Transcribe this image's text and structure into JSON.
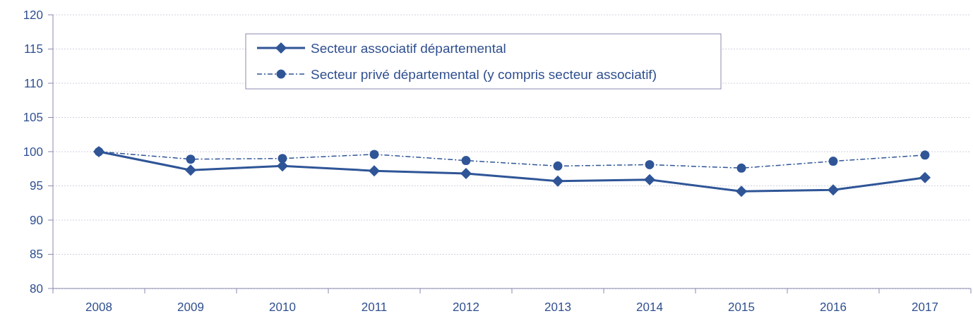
{
  "chart_data": {
    "type": "line",
    "categories": [
      "2008",
      "2009",
      "2010",
      "2011",
      "2012",
      "2013",
      "2014",
      "2015",
      "2016",
      "2017"
    ],
    "series": [
      {
        "name": "Secteur associatif départemental",
        "color": "#2f5597",
        "marker": "diamond",
        "line_style": "solid",
        "values": [
          100,
          97.3,
          97.9,
          97.2,
          96.8,
          95.7,
          95.9,
          94.2,
          94.4,
          96.2
        ]
      },
      {
        "name": "Secteur privé départemental (y compris secteur associatif)",
        "color": "#2f5597",
        "marker": "circle",
        "line_style": "dashdot",
        "values": [
          100,
          98.9,
          99.0,
          99.6,
          98.7,
          97.9,
          98.1,
          97.6,
          98.6,
          99.5
        ]
      }
    ],
    "ylim": [
      80,
      120
    ],
    "yticks": [
      80,
      85,
      90,
      95,
      100,
      105,
      110,
      115,
      120
    ],
    "grid": "y",
    "legend": "top"
  }
}
